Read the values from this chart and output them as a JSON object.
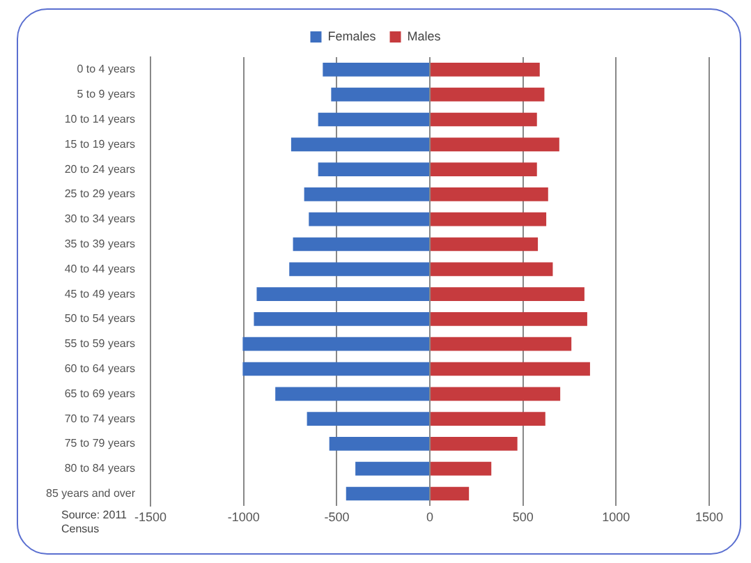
{
  "chart_data": {
    "type": "bar",
    "orientation": "horizontal",
    "stacked": true,
    "categories": [
      "0 to 4 years",
      "5 to 9 years",
      "10 to 14 years",
      "15 to 19 years",
      "20 to 24 years",
      "25 to 29 years",
      "30 to 34 years",
      "35 to 39 years",
      "40 to 44 years",
      "45 to 49 years",
      "50 to 54 years",
      "55 to 59 years",
      "60 to 64 years",
      "65 to 69 years",
      "70 to 74 years",
      "75 to 79 years",
      "80 to 84 years",
      "85 years and over"
    ],
    "series": [
      {
        "name": "Females",
        "color": "#3d6fc0",
        "values": [
          -575,
          -530,
          -600,
          -745,
          -600,
          -675,
          -650,
          -735,
          -755,
          -930,
          -945,
          -1005,
          -1005,
          -830,
          -660,
          -540,
          -400,
          -450
        ]
      },
      {
        "name": "Males",
        "color": "#c63b3e",
        "values": [
          590,
          615,
          575,
          695,
          575,
          635,
          625,
          580,
          660,
          830,
          845,
          760,
          860,
          700,
          620,
          470,
          330,
          210
        ]
      }
    ],
    "xlim": [
      -1500,
      1500
    ],
    "xticks": [
      -1500,
      -1000,
      -500,
      0,
      500,
      1000,
      1500
    ],
    "grid": "x",
    "legend": "top",
    "annotations": [
      "Source: 2011 Census"
    ]
  }
}
